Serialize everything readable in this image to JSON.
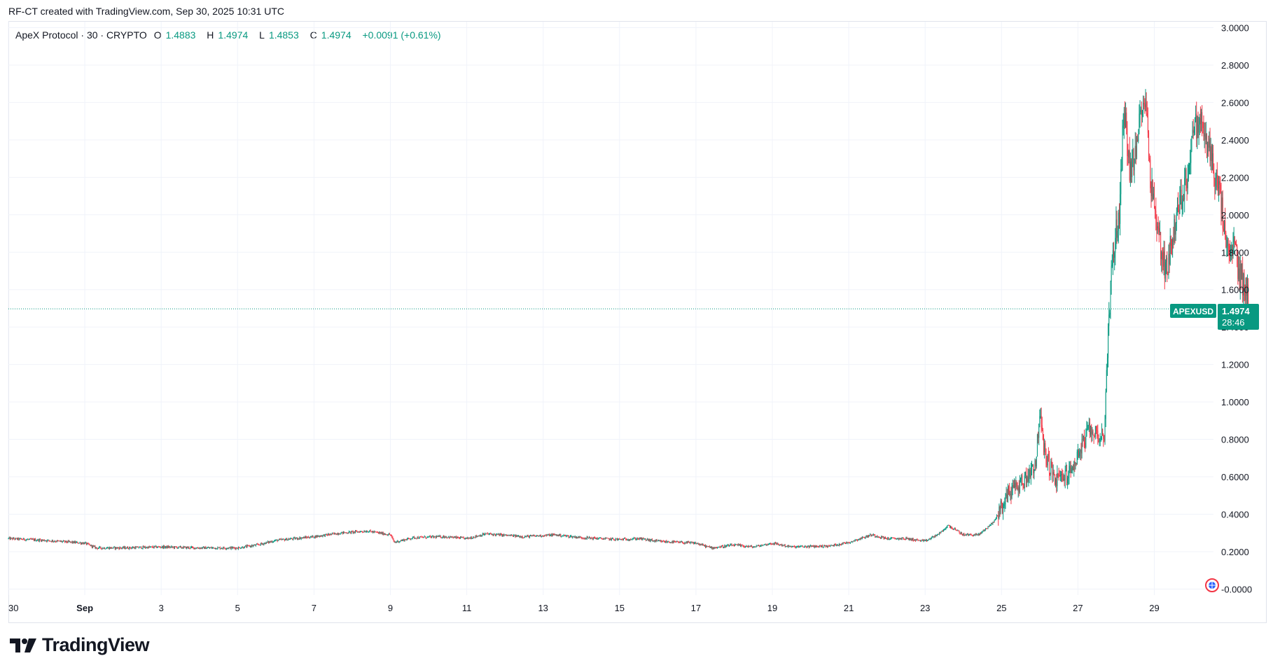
{
  "header": {
    "credit": "RF-CT created with TradingView.com, Sep 30, 2025 10:31 UTC"
  },
  "legend": {
    "symbol": "ApeX Protocol · 30 · CRYPTO",
    "o_label": "O",
    "o_value": "1.4883",
    "h_label": "H",
    "h_value": "1.4974",
    "l_label": "L",
    "l_value": "1.4853",
    "c_label": "C",
    "c_value": "1.4974",
    "change": "+0.0091 (+0.61%)"
  },
  "price_tag": {
    "symbol": "APEXUSD",
    "price": "1.4974",
    "countdown": "28:46"
  },
  "footer": {
    "brand": "TradingView"
  },
  "colors": {
    "up": "#089981",
    "down": "#f23645",
    "grid": "#f0f3fa",
    "axis_text": "#131722"
  },
  "chart_data": {
    "type": "candlestick",
    "title": "ApeX Protocol · 30 · CRYPTO",
    "symbol": "APEXUSD",
    "interval": "30",
    "last_price": 1.4974,
    "y_ticks": [
      -0.0,
      0.2,
      0.4,
      0.6,
      0.8,
      1.0,
      1.2,
      1.4,
      1.6,
      1.8,
      2.0,
      2.2,
      2.4,
      2.6,
      2.8,
      3.0
    ],
    "y_tick_labels": [
      "-0.0000",
      "0.2000",
      "0.4000",
      "0.6000",
      "0.8000",
      "1.0000",
      "1.2000",
      "1.4000",
      "1.6000",
      "1.8000",
      "2.0000",
      "2.2000",
      "2.4000",
      "2.6000",
      "2.8000",
      "3.0000"
    ],
    "ylim": [
      -0.05,
      3.05
    ],
    "x_tick_labels": [
      "30",
      "Sep",
      "3",
      "5",
      "7",
      "9",
      "11",
      "13",
      "15",
      "17",
      "19",
      "21",
      "23",
      "25",
      "27",
      "29"
    ],
    "x_tick_days": [
      0,
      2,
      4,
      6,
      8,
      10,
      12,
      14,
      16,
      18,
      20,
      22,
      24,
      26,
      28,
      30
    ],
    "xlim_days": [
      0,
      31.4
    ],
    "x_unit": "days since Aug 30, 2025",
    "price_path": [
      [
        0.0,
        0.27
      ],
      [
        1.0,
        0.26
      ],
      [
        2.0,
        0.245
      ],
      [
        2.3,
        0.22
      ],
      [
        3.0,
        0.22
      ],
      [
        4.0,
        0.225
      ],
      [
        5.0,
        0.22
      ],
      [
        6.0,
        0.22
      ],
      [
        6.5,
        0.235
      ],
      [
        7.0,
        0.26
      ],
      [
        8.0,
        0.28
      ],
      [
        8.7,
        0.3
      ],
      [
        9.4,
        0.31
      ],
      [
        10.0,
        0.29
      ],
      [
        10.1,
        0.25
      ],
      [
        10.6,
        0.275
      ],
      [
        11.4,
        0.28
      ],
      [
        12.0,
        0.27
      ],
      [
        12.5,
        0.295
      ],
      [
        13.5,
        0.28
      ],
      [
        14.3,
        0.29
      ],
      [
        15.0,
        0.275
      ],
      [
        16.0,
        0.265
      ],
      [
        16.5,
        0.27
      ],
      [
        17.0,
        0.255
      ],
      [
        18.0,
        0.245
      ],
      [
        18.4,
        0.22
      ],
      [
        19.0,
        0.235
      ],
      [
        19.5,
        0.225
      ],
      [
        20.0,
        0.245
      ],
      [
        20.5,
        0.225
      ],
      [
        21.5,
        0.23
      ],
      [
        22.0,
        0.25
      ],
      [
        22.6,
        0.29
      ],
      [
        23.0,
        0.27
      ],
      [
        23.5,
        0.27
      ],
      [
        24.0,
        0.255
      ],
      [
        24.4,
        0.3
      ],
      [
        24.6,
        0.34
      ],
      [
        25.0,
        0.29
      ],
      [
        25.4,
        0.29
      ],
      [
        25.8,
        0.36
      ],
      [
        26.2,
        0.52
      ],
      [
        26.6,
        0.58
      ],
      [
        26.9,
        0.68
      ],
      [
        27.0,
        0.95
      ],
      [
        27.1,
        0.75
      ],
      [
        27.4,
        0.58
      ],
      [
        27.8,
        0.62
      ],
      [
        28.0,
        0.72
      ],
      [
        28.3,
        0.85
      ],
      [
        28.6,
        0.82
      ],
      [
        28.7,
        0.83
      ],
      [
        28.8,
        1.45
      ],
      [
        28.9,
        1.75
      ],
      [
        29.1,
        2.05
      ],
      [
        29.2,
        2.6
      ],
      [
        29.35,
        2.25
      ],
      [
        29.5,
        2.3
      ],
      [
        29.7,
        2.65
      ],
      [
        29.8,
        2.55
      ],
      [
        29.9,
        2.2
      ],
      [
        30.1,
        1.9
      ],
      [
        30.3,
        1.7
      ],
      [
        30.6,
        2.0
      ],
      [
        30.9,
        2.25
      ],
      [
        31.0,
        2.45
      ],
      [
        31.2,
        2.5
      ],
      [
        31.5,
        2.3
      ],
      [
        31.6,
        2.2
      ],
      [
        31.75,
        2.05
      ],
      [
        31.95,
        1.75
      ],
      [
        32.1,
        1.85
      ],
      [
        32.2,
        1.7
      ],
      [
        32.4,
        1.6
      ],
      [
        32.5,
        1.4974
      ]
    ]
  }
}
